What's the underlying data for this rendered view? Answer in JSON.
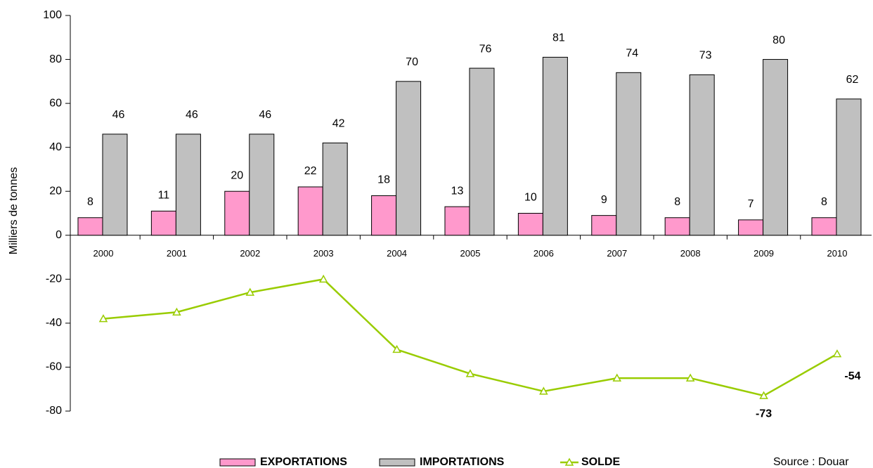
{
  "chart_data": {
    "type": "bar",
    "ylabel": "Milliers de tonnes",
    "categories": [
      "2000",
      "2001",
      "2002",
      "2003",
      "2004",
      "2005",
      "2006",
      "2007",
      "2008",
      "2009",
      "2010"
    ],
    "series": [
      {
        "name": "EXPORTATIONS",
        "color": "#ff99cc",
        "values": [
          8,
          11,
          20,
          22,
          18,
          13,
          10,
          9,
          8,
          7,
          8
        ]
      },
      {
        "name": "IMPORTATIONS",
        "color": "#c0c0c0",
        "values": [
          46,
          46,
          46,
          42,
          70,
          76,
          81,
          74,
          73,
          80,
          62
        ]
      },
      {
        "name": "SOLDE",
        "type": "line",
        "color": "#99cc00",
        "values": [
          -38,
          -35,
          -26,
          -20,
          -52,
          -63,
          -71,
          -65,
          -65,
          -73,
          -54
        ],
        "value_labels": [
          null,
          null,
          null,
          null,
          null,
          null,
          null,
          null,
          null,
          "-73",
          "-54"
        ]
      }
    ],
    "ylim": [
      -80,
      100
    ],
    "yticks": [
      -80,
      -60,
      -40,
      -20,
      0,
      20,
      40,
      60,
      80,
      100
    ],
    "source": "Source : Douar"
  }
}
